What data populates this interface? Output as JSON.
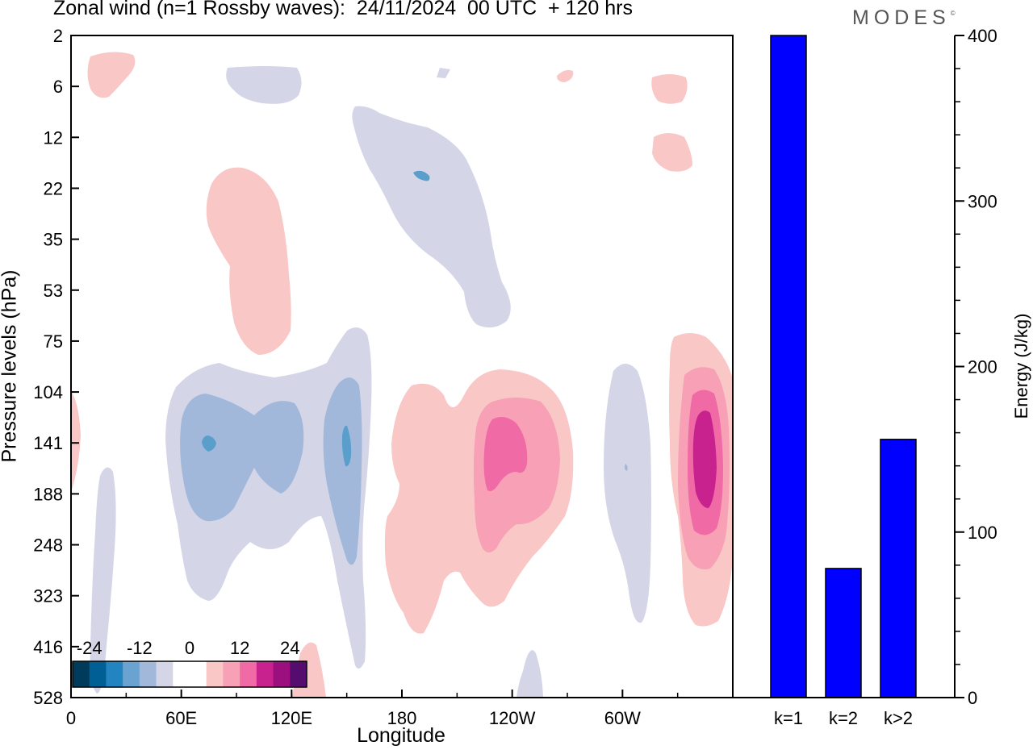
{
  "title": "Zonal wind (n=1 Rossby waves):  24/11/2024  00 UTC  + 120 hrs",
  "logo": "MODES",
  "logo_mark": "©",
  "colors": {
    "neg3": "#a3b7d8",
    "neg2": "#a2b8db",
    "neg4": "#5a9fcb",
    "neg1": "#d4d6e8",
    "pos1": "#f9c7c5",
    "pos2": "#f8a0b5",
    "pos3": "#f06aa6",
    "pos4": "#c7228e",
    "bar": "#0000ff"
  },
  "chart_data": [
    {
      "type": "heatmap",
      "title": "Zonal wind (n=1 Rossby waves):  24/11/2024  00 UTC  + 120 hrs",
      "xlabel": "Longitude",
      "ylabel": "Pressure levels (hPa)",
      "x_ticks": [
        "0",
        "60E",
        "120E",
        "180",
        "120W",
        "60W"
      ],
      "x_tick_degrees": [
        0,
        60,
        120,
        180,
        240,
        300
      ],
      "xlim_degrees": [
        0,
        360
      ],
      "y_ticks": [
        "2",
        "6",
        "12",
        "22",
        "35",
        "53",
        "75",
        "104",
        "141",
        "188",
        "248",
        "323",
        "416",
        "528"
      ],
      "colorbar": {
        "tick_labels": [
          "-24",
          "-12",
          "0",
          "12",
          "24"
        ],
        "colors": [
          "#003b5c",
          "#005f94",
          "#2384c2",
          "#6aa3d0",
          "#a2b8db",
          "#d4d6e8",
          "#ffffff",
          "#ffffff",
          "#f9c7c5",
          "#f8a0b5",
          "#f06aa6",
          "#c7228e",
          "#9c0f7e",
          "#560c6e"
        ]
      }
    },
    {
      "type": "bar",
      "categories": [
        "k=1",
        "k=2",
        "k>2"
      ],
      "values": [
        400,
        78,
        156
      ],
      "ylabel": "Energy (J/kg)",
      "ylim": [
        0,
        400
      ],
      "y_ticks": [
        "0",
        "100",
        "200",
        "300",
        "400"
      ]
    }
  ]
}
